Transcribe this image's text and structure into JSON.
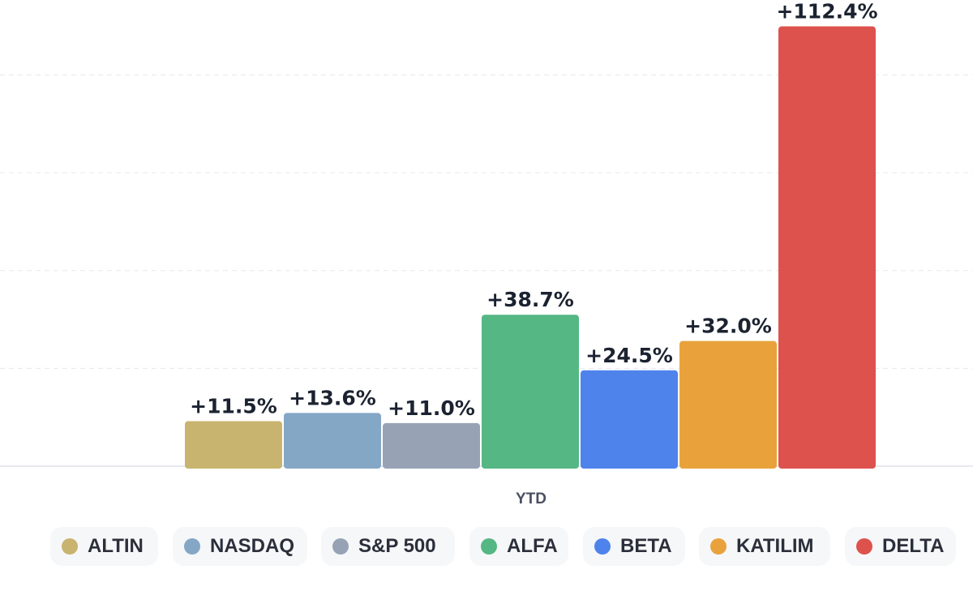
{
  "chart_data": {
    "type": "bar",
    "categories": [
      "YTD"
    ],
    "series": [
      {
        "name": "ALTIN",
        "values": [
          11.5
        ],
        "label": "+11.5%",
        "color": "#c8b46e"
      },
      {
        "name": "NASDAQ",
        "values": [
          13.6
        ],
        "label": "+13.6%",
        "color": "#85a7c6"
      },
      {
        "name": "S&P 500",
        "values": [
          11.0
        ],
        "label": "+11.0%",
        "color": "#97a3b5"
      },
      {
        "name": "ALFA",
        "values": [
          38.7
        ],
        "label": "+38.7%",
        "color": "#55b784"
      },
      {
        "name": "BETA",
        "values": [
          24.5
        ],
        "label": "+24.5%",
        "color": "#4f83ec"
      },
      {
        "name": "KATILIM",
        "values": [
          32.0
        ],
        "label": "+32.0%",
        "color": "#e9a23b"
      },
      {
        "name": "DELTA",
        "values": [
          112.4
        ],
        "label": "+112.4%",
        "color": "#de524d"
      }
    ],
    "title": "",
    "xlabel": "",
    "ylabel": "",
    "ylim": [
      0,
      115
    ],
    "grid": true,
    "legend_position": "bottom",
    "data_labels": true
  }
}
